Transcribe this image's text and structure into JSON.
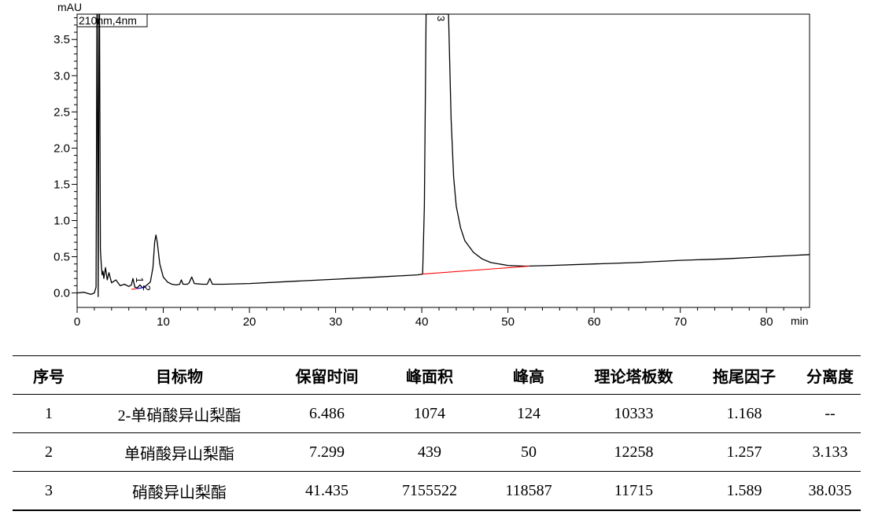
{
  "chart_data": {
    "type": "line",
    "detector_label": "210nm,4nm",
    "y_unit": "mAU",
    "x_unit": "min",
    "xlim": [
      0,
      85
    ],
    "ylim": [
      -0.2,
      3.85
    ],
    "x_ticks": [
      0,
      10,
      20,
      30,
      40,
      50,
      60,
      70,
      80
    ],
    "y_ticks": [
      0.0,
      0.5,
      1.0,
      1.5,
      2.0,
      2.5,
      3.0,
      3.5
    ],
    "y_tick_labels": [
      "0.0",
      "0.5",
      "1.0",
      "1.5",
      "2.0",
      "2.5",
      "3.0",
      "3.5"
    ],
    "trace": {
      "color": "#000000",
      "points": [
        [
          0.0,
          0.0
        ],
        [
          0.8,
          0.01
        ],
        [
          1.6,
          -0.02
        ],
        [
          2.0,
          0.0
        ],
        [
          2.2,
          0.08
        ],
        [
          2.3,
          3.85
        ],
        [
          2.35,
          3.85
        ],
        [
          2.45,
          -0.05
        ],
        [
          2.55,
          3.85
        ],
        [
          2.6,
          3.85
        ],
        [
          2.7,
          0.6
        ],
        [
          2.8,
          0.4
        ],
        [
          2.9,
          0.25
        ],
        [
          3.0,
          0.3
        ],
        [
          3.1,
          0.2
        ],
        [
          3.3,
          0.35
        ],
        [
          3.5,
          0.18
        ],
        [
          3.7,
          0.28
        ],
        [
          4.0,
          0.14
        ],
        [
          4.5,
          0.18
        ],
        [
          5.0,
          0.1
        ],
        [
          5.5,
          0.12
        ],
        [
          6.0,
          0.09
        ],
        [
          6.3,
          0.11
        ],
        [
          6.486,
          0.2
        ],
        [
          6.7,
          0.08
        ],
        [
          7.0,
          0.07
        ],
        [
          7.299,
          0.11
        ],
        [
          7.6,
          0.07
        ],
        [
          8.0,
          0.1
        ],
        [
          8.5,
          0.15
        ],
        [
          8.8,
          0.35
        ],
        [
          9.0,
          0.7
        ],
        [
          9.15,
          0.8
        ],
        [
          9.3,
          0.7
        ],
        [
          9.6,
          0.4
        ],
        [
          10.0,
          0.22
        ],
        [
          10.5,
          0.15
        ],
        [
          11.0,
          0.12
        ],
        [
          11.5,
          0.11
        ],
        [
          11.9,
          0.12
        ],
        [
          12.1,
          0.18
        ],
        [
          12.3,
          0.12
        ],
        [
          12.8,
          0.12
        ],
        [
          13.0,
          0.14
        ],
        [
          13.3,
          0.22
        ],
        [
          13.6,
          0.13
        ],
        [
          14.5,
          0.12
        ],
        [
          15.1,
          0.12
        ],
        [
          15.4,
          0.2
        ],
        [
          15.7,
          0.12
        ],
        [
          17.0,
          0.12
        ],
        [
          20.0,
          0.13
        ],
        [
          25.0,
          0.16
        ],
        [
          30.0,
          0.19
        ],
        [
          35.0,
          0.22
        ],
        [
          39.5,
          0.25
        ],
        [
          40.1,
          0.26
        ],
        [
          40.3,
          1.2
        ],
        [
          40.5,
          3.85
        ],
        [
          43.1,
          3.85
        ],
        [
          43.4,
          2.4
        ],
        [
          43.7,
          1.6
        ],
        [
          44.0,
          1.2
        ],
        [
          44.5,
          0.9
        ],
        [
          45.0,
          0.72
        ],
        [
          46.0,
          0.56
        ],
        [
          47.0,
          0.47
        ],
        [
          48.0,
          0.42
        ],
        [
          50.0,
          0.38
        ],
        [
          52.0,
          0.37
        ],
        [
          55.0,
          0.38
        ],
        [
          60.0,
          0.4
        ],
        [
          65.0,
          0.42
        ],
        [
          70.0,
          0.45
        ],
        [
          75.0,
          0.47
        ],
        [
          80.0,
          0.5
        ],
        [
          85.0,
          0.53
        ]
      ]
    },
    "baselines": [
      {
        "color": "#ff0000",
        "points": [
          [
            40.1,
            0.26
          ],
          [
            52.5,
            0.37
          ]
        ]
      },
      {
        "color": "#ff0000",
        "points": [
          [
            6.3,
            0.05
          ],
          [
            7.0,
            0.06
          ]
        ]
      },
      {
        "color": "#0000ff",
        "points": [
          [
            7.0,
            0.06
          ],
          [
            8.0,
            0.08
          ]
        ]
      }
    ],
    "peak_labels": [
      {
        "label": "1",
        "x": 6.486,
        "y": 0.24
      },
      {
        "label": "2",
        "x": 7.299,
        "y": 0.13
      },
      {
        "label": "3",
        "x": 41.435,
        "y": 3.85
      }
    ]
  },
  "table": {
    "headers": [
      "序号",
      "目标物",
      "保留时间",
      "峰面积",
      "峰高",
      "理论塔板数",
      "拖尾因子",
      "分离度"
    ],
    "rows": [
      [
        "1",
        "2-单硝酸异山梨酯",
        "6.486",
        "1074",
        "124",
        "10333",
        "1.168",
        "--"
      ],
      [
        "2",
        "单硝酸异山梨酯",
        "7.299",
        "439",
        "50",
        "12258",
        "1.257",
        "3.133"
      ],
      [
        "3",
        "硝酸异山梨酯",
        "41.435",
        "7155522",
        "118587",
        "11715",
        "1.589",
        "38.035"
      ]
    ]
  }
}
